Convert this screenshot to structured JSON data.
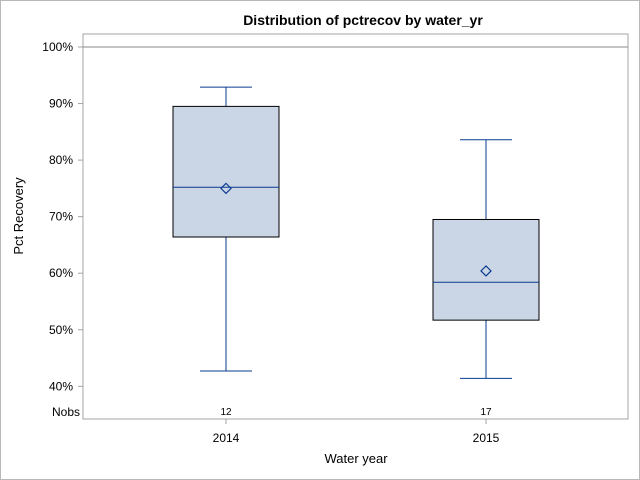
{
  "chart_data": {
    "type": "box",
    "title": "Distribution of pctrecov by water_yr",
    "xlabel": "Water year",
    "ylabel": "Pct Recovery",
    "ylim": [
      38,
      102
    ],
    "yticks": [
      40,
      50,
      60,
      70,
      80,
      90,
      100
    ],
    "ytick_labels": [
      "40%",
      "50%",
      "60%",
      "70%",
      "80%",
      "90%",
      "100%"
    ],
    "reference_line": 100,
    "categories": [
      "2014",
      "2015"
    ],
    "nobs_label": "Nobs",
    "series": [
      {
        "category": "2014",
        "whisker_low": 42.7,
        "q1": 66.4,
        "median": 75.2,
        "mean": 75.0,
        "q3": 89.5,
        "whisker_high": 92.9,
        "nobs": "12"
      },
      {
        "category": "2015",
        "whisker_low": 41.4,
        "q1": 51.7,
        "median": 58.4,
        "mean": 60.4,
        "q3": 69.5,
        "whisker_high": 83.6,
        "nobs": "17"
      }
    ],
    "grid": false,
    "colors": {
      "box_fill": "#cad5e5",
      "box_edge": "#000000",
      "whisker": "#0a3b8f",
      "mean_marker": "#0a3b8f",
      "frame": "#a0a4a8"
    }
  }
}
